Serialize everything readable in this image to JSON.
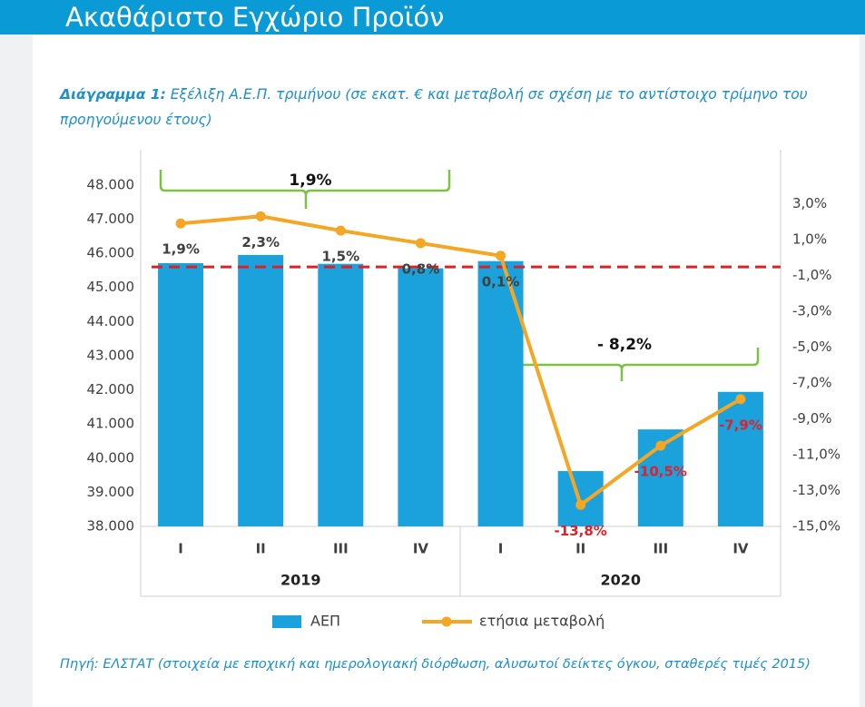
{
  "header": {
    "title": "Ακαθάριστο Εγχώριο Προϊόν"
  },
  "caption": {
    "label": "Διάγραμμα 1:",
    "text": "Εξέλιξη Α.Ε.Π. τριμήνου (σε εκατ. € και μεταβολή σε σχέση με το αντίστοιχο τρίμηνο του προηγούμενου έτους)"
  },
  "chart_data": {
    "type": "bar",
    "categories": [
      "I",
      "II",
      "III",
      "IV",
      "I",
      "II",
      "III",
      "IV"
    ],
    "groups": [
      "2019",
      "2020"
    ],
    "series": [
      {
        "name": "ΑΕΠ",
        "type": "bar",
        "color": "#1ba1dc",
        "values": [
          45710,
          45950,
          45690,
          45560,
          45770,
          39620,
          40840,
          41940
        ]
      },
      {
        "name": "ετήσια μεταβολή",
        "type": "line",
        "axis": "y2",
        "color": "#f5a623",
        "values": [
          1.9,
          2.3,
          1.5,
          0.8,
          0.1,
          -13.8,
          -10.5,
          -7.9
        ],
        "value_labels": [
          "1,9%",
          "2,3%",
          "1,5%",
          "0,8%",
          "0,1%",
          "-13,8%",
          "-10,5%",
          "-7,9%"
        ]
      }
    ],
    "ylim": [
      38000,
      48500
    ],
    "yticks": [
      {
        "value": 38000,
        "label": "38.000"
      },
      {
        "value": 39000,
        "label": "39.000"
      },
      {
        "value": 40000,
        "label": "40.000"
      },
      {
        "value": 41000,
        "label": "41.000"
      },
      {
        "value": 42000,
        "label": "42.000"
      },
      {
        "value": 43000,
        "label": "43.000"
      },
      {
        "value": 44000,
        "label": "44.000"
      },
      {
        "value": 45000,
        "label": "45.000"
      },
      {
        "value": 46000,
        "label": "46.000"
      },
      {
        "value": 47000,
        "label": "47.000"
      },
      {
        "value": 48000,
        "label": "48.000"
      }
    ],
    "y2lim": [
      -15,
      5
    ],
    "y2ticks": [
      {
        "value": 3,
        "label": "3,0%"
      },
      {
        "value": 1,
        "label": "1,0%"
      },
      {
        "value": -1,
        "label": "-1,0%"
      },
      {
        "value": -3,
        "label": "-3,0%"
      },
      {
        "value": -5,
        "label": "-5,0%"
      },
      {
        "value": -7,
        "label": "-7,0%"
      },
      {
        "value": -9,
        "label": "-9,0%"
      },
      {
        "value": -11,
        "label": "-11,0%"
      },
      {
        "value": -13,
        "label": "-13,0%"
      },
      {
        "value": -15,
        "label": "-15,0%"
      }
    ],
    "reference_line": {
      "value": 45600,
      "color": "#e02020"
    },
    "annotations": [
      "1,9%",
      "- 8,2%"
    ],
    "legend": "bottom"
  },
  "source": "Πηγή: ΕΛΣΤΑΤ (στοιχεία με εποχική και ημερολογιακή διόρθωση, αλυσωτοί δείκτες όγκου, σταθερές τιμές 2015)"
}
